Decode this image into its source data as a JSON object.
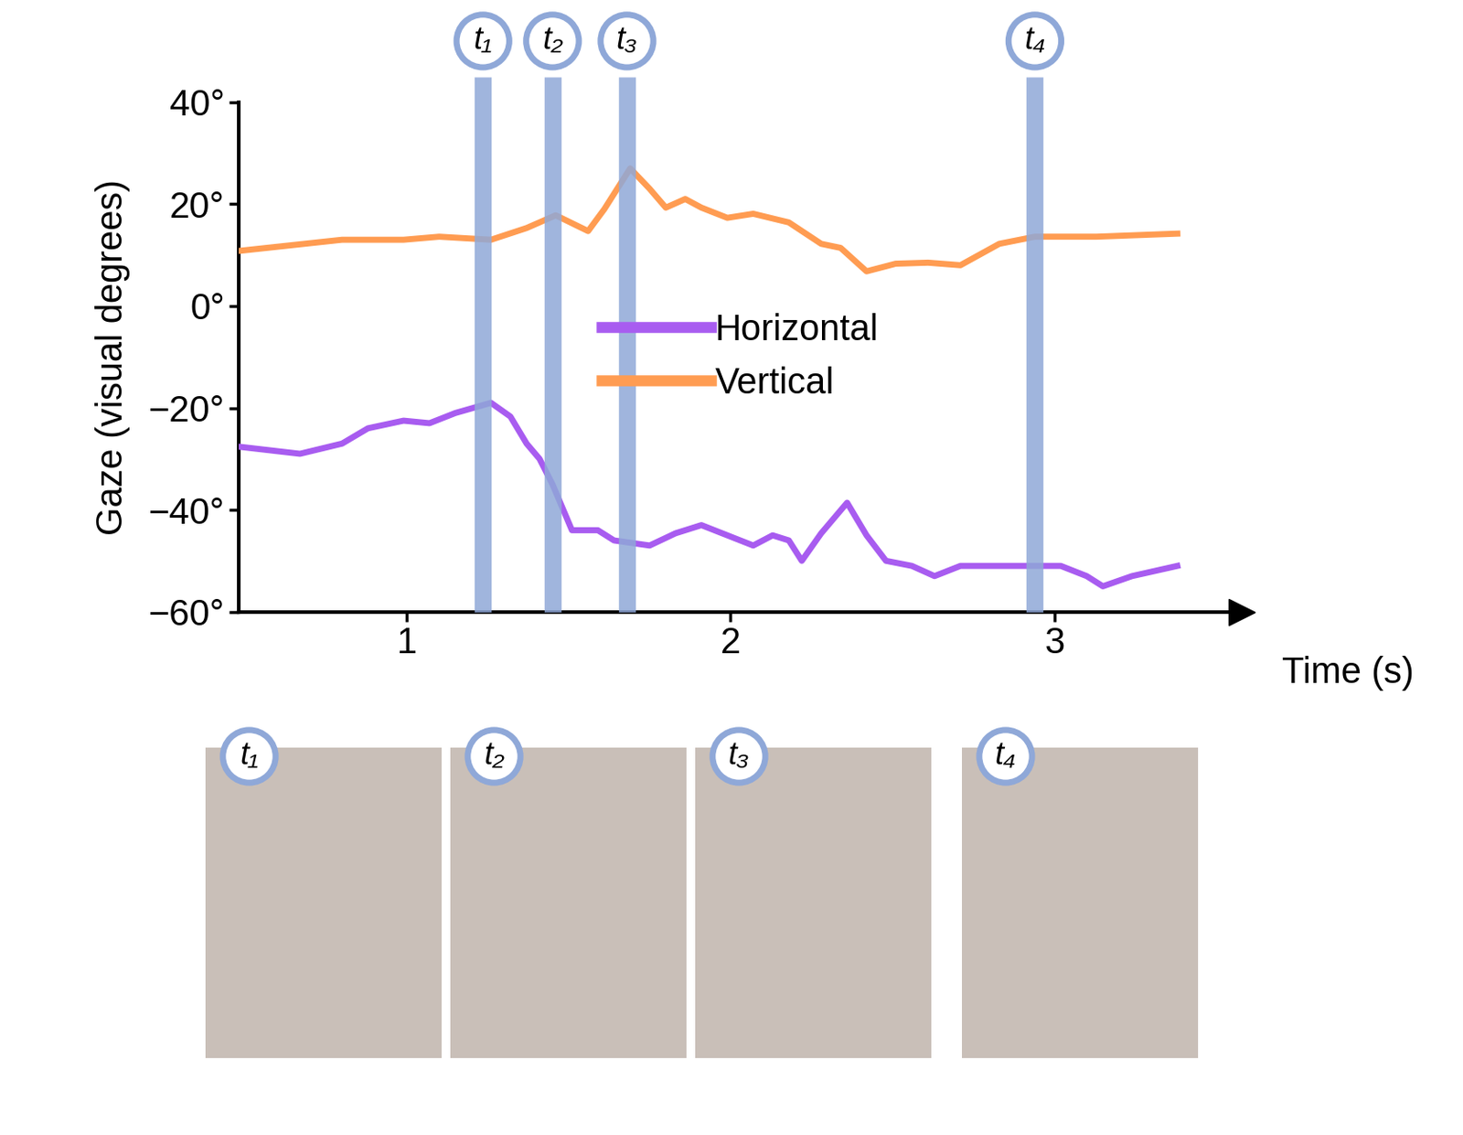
{
  "chart_data": {
    "type": "line",
    "x_label": "Time (s)",
    "y_label": "Gaze (visual degrees)",
    "x": [
      0.48,
      0.64,
      0.67,
      0.8,
      0.88,
      0.99,
      1.07,
      1.1,
      1.15,
      1.26,
      1.32,
      1.37,
      1.41,
      1.45,
      1.46,
      1.51,
      1.56,
      1.59,
      1.61,
      1.64,
      1.69,
      1.75,
      1.8,
      1.83,
      1.86,
      1.91,
      1.99,
      2.07,
      2.13,
      2.18,
      2.22,
      2.28,
      2.34,
      2.36,
      2.42,
      2.48,
      2.51,
      2.56,
      2.61,
      2.63,
      2.71,
      2.83,
      2.86,
      2.94,
      3.02,
      3.1,
      3.13,
      3.15,
      3.24,
      3.38
    ],
    "series": [
      {
        "name": "Horizontal",
        "color": "#a85cf0",
        "values": [
          -27.6,
          null,
          -29,
          -27,
          -24,
          -22.5,
          -23,
          null,
          -21,
          -19,
          -21.7,
          -27,
          -30,
          -35,
          null,
          -44,
          null,
          -44,
          null,
          -46,
          null,
          -47,
          null,
          -44.6,
          null,
          -43,
          -45,
          -47,
          -45,
          -46,
          -50,
          -44.6,
          null,
          -38.6,
          -45,
          -50,
          null,
          -51,
          null,
          -53,
          -51,
          null,
          -51,
          null,
          -51,
          -53,
          null,
          -55,
          -53,
          -51
        ]
      },
      {
        "name": "Vertical",
        "color": "#ff9c52",
        "values": [
          10.8,
          11.9,
          null,
          13,
          null,
          13,
          null,
          13.6,
          null,
          13,
          null,
          15.3,
          null,
          null,
          17.8,
          null,
          14.7,
          null,
          19,
          null,
          27,
          23,
          19.3,
          null,
          21,
          19.3,
          17.3,
          18.1,
          null,
          16.4,
          null,
          12.2,
          11.4,
          null,
          6.8,
          null,
          8.3,
          null,
          8.5,
          null,
          8,
          12.2,
          null,
          13.6,
          null,
          null,
          13.6,
          null,
          null,
          14.2
        ]
      }
    ],
    "annotations": [
      {
        "label": "t₁",
        "x": 1.235
      },
      {
        "label": "t₂",
        "x": 1.45
      },
      {
        "label": "t₃",
        "x": 1.68
      },
      {
        "label": "t₄",
        "x": 2.94
      }
    ],
    "xlim": [
      0.48,
      3.58
    ],
    "xticks": [
      1,
      2,
      3
    ],
    "ylim": [
      -60,
      40
    ],
    "yticks": [
      {
        "value": -60,
        "label": "−60°"
      },
      {
        "value": -40,
        "label": "−40°"
      },
      {
        "value": -20,
        "label": "−20°"
      },
      {
        "value": 0,
        "label": "0°"
      },
      {
        "value": 20,
        "label": "20°"
      },
      {
        "value": 40,
        "label": "40°"
      }
    ],
    "grid": false,
    "legend": "center"
  }
}
